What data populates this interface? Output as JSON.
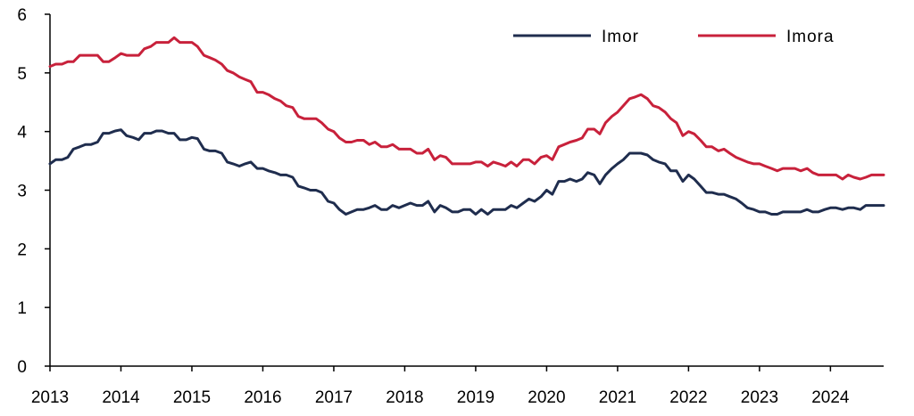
{
  "chart_data": {
    "type": "line",
    "title": "",
    "xlabel": "",
    "ylabel": "",
    "xlim": [
      2013,
      2024.75
    ],
    "ylim": [
      0,
      6
    ],
    "y_ticks": [
      0,
      1,
      2,
      3,
      4,
      5,
      6
    ],
    "x_ticks": [
      2013,
      2014,
      2015,
      2016,
      2017,
      2018,
      2019,
      2020,
      2021,
      2022,
      2023,
      2024
    ],
    "x_tick_labels": [
      "2013",
      "2014",
      "2015",
      "2016",
      "2017",
      "2018",
      "2019",
      "2020",
      "2021",
      "2022",
      "2023",
      "2024"
    ],
    "grid": false,
    "legend_position": "top-right",
    "series": [
      {
        "name": "Imor",
        "color": "#1f2d4e",
        "points": [
          [
            2013.0,
            3.45
          ],
          [
            2013.08,
            3.52
          ],
          [
            2013.17,
            3.52
          ],
          [
            2013.25,
            3.56
          ],
          [
            2013.33,
            3.7
          ],
          [
            2013.42,
            3.74
          ],
          [
            2013.5,
            3.78
          ],
          [
            2013.58,
            3.78
          ],
          [
            2013.67,
            3.82
          ],
          [
            2013.75,
            3.97
          ],
          [
            2013.83,
            3.97
          ],
          [
            2013.92,
            4.01
          ],
          [
            2014.0,
            4.03
          ],
          [
            2014.08,
            3.93
          ],
          [
            2014.17,
            3.9
          ],
          [
            2014.25,
            3.86
          ],
          [
            2014.33,
            3.97
          ],
          [
            2014.42,
            3.97
          ],
          [
            2014.5,
            4.01
          ],
          [
            2014.58,
            4.01
          ],
          [
            2014.67,
            3.97
          ],
          [
            2014.75,
            3.97
          ],
          [
            2014.83,
            3.86
          ],
          [
            2014.92,
            3.86
          ],
          [
            2015.0,
            3.9
          ],
          [
            2015.08,
            3.88
          ],
          [
            2015.17,
            3.7
          ],
          [
            2015.25,
            3.67
          ],
          [
            2015.33,
            3.67
          ],
          [
            2015.42,
            3.63
          ],
          [
            2015.5,
            3.48
          ],
          [
            2015.58,
            3.45
          ],
          [
            2015.67,
            3.41
          ],
          [
            2015.75,
            3.45
          ],
          [
            2015.83,
            3.48
          ],
          [
            2015.92,
            3.37
          ],
          [
            2016.0,
            3.37
          ],
          [
            2016.08,
            3.33
          ],
          [
            2016.17,
            3.3
          ],
          [
            2016.25,
            3.26
          ],
          [
            2016.33,
            3.26
          ],
          [
            2016.42,
            3.22
          ],
          [
            2016.5,
            3.07
          ],
          [
            2016.58,
            3.04
          ],
          [
            2016.67,
            3.0
          ],
          [
            2016.75,
            3.0
          ],
          [
            2016.83,
            2.96
          ],
          [
            2016.92,
            2.81
          ],
          [
            2017.0,
            2.78
          ],
          [
            2017.08,
            2.67
          ],
          [
            2017.17,
            2.59
          ],
          [
            2017.25,
            2.63
          ],
          [
            2017.33,
            2.67
          ],
          [
            2017.42,
            2.67
          ],
          [
            2017.5,
            2.7
          ],
          [
            2017.58,
            2.74
          ],
          [
            2017.67,
            2.67
          ],
          [
            2017.75,
            2.67
          ],
          [
            2017.83,
            2.74
          ],
          [
            2017.92,
            2.7
          ],
          [
            2018.0,
            2.74
          ],
          [
            2018.08,
            2.78
          ],
          [
            2018.17,
            2.74
          ],
          [
            2018.25,
            2.74
          ],
          [
            2018.33,
            2.81
          ],
          [
            2018.42,
            2.63
          ],
          [
            2018.5,
            2.74
          ],
          [
            2018.58,
            2.7
          ],
          [
            2018.67,
            2.63
          ],
          [
            2018.75,
            2.63
          ],
          [
            2018.83,
            2.67
          ],
          [
            2018.92,
            2.67
          ],
          [
            2019.0,
            2.59
          ],
          [
            2019.08,
            2.67
          ],
          [
            2019.17,
            2.59
          ],
          [
            2019.25,
            2.67
          ],
          [
            2019.33,
            2.67
          ],
          [
            2019.42,
            2.67
          ],
          [
            2019.5,
            2.74
          ],
          [
            2019.58,
            2.7
          ],
          [
            2019.67,
            2.78
          ],
          [
            2019.75,
            2.85
          ],
          [
            2019.83,
            2.81
          ],
          [
            2019.92,
            2.89
          ],
          [
            2020.0,
            3.0
          ],
          [
            2020.08,
            2.93
          ],
          [
            2020.17,
            3.15
          ],
          [
            2020.25,
            3.15
          ],
          [
            2020.33,
            3.19
          ],
          [
            2020.42,
            3.15
          ],
          [
            2020.5,
            3.19
          ],
          [
            2020.58,
            3.3
          ],
          [
            2020.67,
            3.26
          ],
          [
            2020.75,
            3.11
          ],
          [
            2020.83,
            3.26
          ],
          [
            2020.92,
            3.37
          ],
          [
            2021.0,
            3.45
          ],
          [
            2021.08,
            3.52
          ],
          [
            2021.17,
            3.63
          ],
          [
            2021.25,
            3.63
          ],
          [
            2021.33,
            3.63
          ],
          [
            2021.42,
            3.6
          ],
          [
            2021.5,
            3.52
          ],
          [
            2021.58,
            3.48
          ],
          [
            2021.67,
            3.45
          ],
          [
            2021.75,
            3.33
          ],
          [
            2021.83,
            3.33
          ],
          [
            2021.92,
            3.15
          ],
          [
            2022.0,
            3.26
          ],
          [
            2022.08,
            3.19
          ],
          [
            2022.17,
            3.07
          ],
          [
            2022.25,
            2.96
          ],
          [
            2022.33,
            2.96
          ],
          [
            2022.42,
            2.93
          ],
          [
            2022.5,
            2.93
          ],
          [
            2022.58,
            2.89
          ],
          [
            2022.67,
            2.85
          ],
          [
            2022.75,
            2.78
          ],
          [
            2022.83,
            2.7
          ],
          [
            2022.92,
            2.67
          ],
          [
            2023.0,
            2.63
          ],
          [
            2023.08,
            2.63
          ],
          [
            2023.17,
            2.59
          ],
          [
            2023.25,
            2.59
          ],
          [
            2023.33,
            2.63
          ],
          [
            2023.42,
            2.63
          ],
          [
            2023.5,
            2.63
          ],
          [
            2023.58,
            2.63
          ],
          [
            2023.67,
            2.67
          ],
          [
            2023.75,
            2.63
          ],
          [
            2023.83,
            2.63
          ],
          [
            2023.92,
            2.67
          ],
          [
            2024.0,
            2.7
          ],
          [
            2024.08,
            2.7
          ],
          [
            2024.17,
            2.67
          ],
          [
            2024.25,
            2.7
          ],
          [
            2024.33,
            2.7
          ],
          [
            2024.42,
            2.67
          ],
          [
            2024.5,
            2.74
          ],
          [
            2024.58,
            2.74
          ],
          [
            2024.67,
            2.74
          ],
          [
            2024.75,
            2.74
          ]
        ]
      },
      {
        "name": "Imora",
        "color": "#c8213b",
        "points": [
          [
            2013.0,
            5.11
          ],
          [
            2013.08,
            5.15
          ],
          [
            2013.17,
            5.15
          ],
          [
            2013.25,
            5.19
          ],
          [
            2013.33,
            5.19
          ],
          [
            2013.42,
            5.3
          ],
          [
            2013.5,
            5.3
          ],
          [
            2013.58,
            5.3
          ],
          [
            2013.67,
            5.3
          ],
          [
            2013.75,
            5.19
          ],
          [
            2013.83,
            5.19
          ],
          [
            2013.92,
            5.26
          ],
          [
            2014.0,
            5.33
          ],
          [
            2014.08,
            5.3
          ],
          [
            2014.17,
            5.3
          ],
          [
            2014.25,
            5.3
          ],
          [
            2014.33,
            5.41
          ],
          [
            2014.42,
            5.45
          ],
          [
            2014.5,
            5.52
          ],
          [
            2014.58,
            5.52
          ],
          [
            2014.67,
            5.52
          ],
          [
            2014.75,
            5.6
          ],
          [
            2014.83,
            5.52
          ],
          [
            2014.92,
            5.52
          ],
          [
            2015.0,
            5.52
          ],
          [
            2015.08,
            5.45
          ],
          [
            2015.17,
            5.3
          ],
          [
            2015.25,
            5.26
          ],
          [
            2015.33,
            5.22
          ],
          [
            2015.42,
            5.15
          ],
          [
            2015.5,
            5.04
          ],
          [
            2015.58,
            5.0
          ],
          [
            2015.67,
            4.93
          ],
          [
            2015.75,
            4.89
          ],
          [
            2015.83,
            4.85
          ],
          [
            2015.92,
            4.67
          ],
          [
            2016.0,
            4.67
          ],
          [
            2016.08,
            4.63
          ],
          [
            2016.17,
            4.56
          ],
          [
            2016.25,
            4.52
          ],
          [
            2016.33,
            4.44
          ],
          [
            2016.42,
            4.41
          ],
          [
            2016.5,
            4.26
          ],
          [
            2016.58,
            4.22
          ],
          [
            2016.67,
            4.22
          ],
          [
            2016.75,
            4.22
          ],
          [
            2016.83,
            4.15
          ],
          [
            2016.92,
            4.04
          ],
          [
            2017.0,
            4.0
          ],
          [
            2017.08,
            3.89
          ],
          [
            2017.17,
            3.82
          ],
          [
            2017.25,
            3.82
          ],
          [
            2017.33,
            3.85
          ],
          [
            2017.42,
            3.85
          ],
          [
            2017.5,
            3.78
          ],
          [
            2017.58,
            3.82
          ],
          [
            2017.67,
            3.74
          ],
          [
            2017.75,
            3.74
          ],
          [
            2017.83,
            3.78
          ],
          [
            2017.92,
            3.7
          ],
          [
            2018.0,
            3.7
          ],
          [
            2018.08,
            3.7
          ],
          [
            2018.17,
            3.63
          ],
          [
            2018.25,
            3.63
          ],
          [
            2018.33,
            3.7
          ],
          [
            2018.42,
            3.52
          ],
          [
            2018.5,
            3.59
          ],
          [
            2018.58,
            3.56
          ],
          [
            2018.67,
            3.45
          ],
          [
            2018.75,
            3.45
          ],
          [
            2018.83,
            3.45
          ],
          [
            2018.92,
            3.45
          ],
          [
            2019.0,
            3.48
          ],
          [
            2019.08,
            3.48
          ],
          [
            2019.17,
            3.41
          ],
          [
            2019.25,
            3.48
          ],
          [
            2019.33,
            3.45
          ],
          [
            2019.42,
            3.41
          ],
          [
            2019.5,
            3.48
          ],
          [
            2019.58,
            3.41
          ],
          [
            2019.67,
            3.52
          ],
          [
            2019.75,
            3.52
          ],
          [
            2019.83,
            3.45
          ],
          [
            2019.92,
            3.56
          ],
          [
            2020.0,
            3.59
          ],
          [
            2020.08,
            3.52
          ],
          [
            2020.17,
            3.74
          ],
          [
            2020.25,
            3.78
          ],
          [
            2020.33,
            3.82
          ],
          [
            2020.42,
            3.85
          ],
          [
            2020.5,
            3.89
          ],
          [
            2020.58,
            4.04
          ],
          [
            2020.67,
            4.04
          ],
          [
            2020.75,
            3.96
          ],
          [
            2020.83,
            4.15
          ],
          [
            2020.92,
            4.26
          ],
          [
            2021.0,
            4.33
          ],
          [
            2021.08,
            4.44
          ],
          [
            2021.17,
            4.56
          ],
          [
            2021.25,
            4.59
          ],
          [
            2021.33,
            4.63
          ],
          [
            2021.42,
            4.56
          ],
          [
            2021.5,
            4.44
          ],
          [
            2021.58,
            4.41
          ],
          [
            2021.67,
            4.33
          ],
          [
            2021.75,
            4.22
          ],
          [
            2021.83,
            4.15
          ],
          [
            2021.92,
            3.93
          ],
          [
            2022.0,
            4.0
          ],
          [
            2022.08,
            3.96
          ],
          [
            2022.17,
            3.85
          ],
          [
            2022.25,
            3.74
          ],
          [
            2022.33,
            3.74
          ],
          [
            2022.42,
            3.67
          ],
          [
            2022.5,
            3.7
          ],
          [
            2022.58,
            3.63
          ],
          [
            2022.67,
            3.56
          ],
          [
            2022.75,
            3.52
          ],
          [
            2022.83,
            3.48
          ],
          [
            2022.92,
            3.45
          ],
          [
            2023.0,
            3.45
          ],
          [
            2023.08,
            3.41
          ],
          [
            2023.17,
            3.37
          ],
          [
            2023.25,
            3.33
          ],
          [
            2023.33,
            3.37
          ],
          [
            2023.42,
            3.37
          ],
          [
            2023.5,
            3.37
          ],
          [
            2023.58,
            3.33
          ],
          [
            2023.67,
            3.37
          ],
          [
            2023.75,
            3.3
          ],
          [
            2023.83,
            3.26
          ],
          [
            2023.92,
            3.26
          ],
          [
            2024.0,
            3.26
          ],
          [
            2024.08,
            3.26
          ],
          [
            2024.17,
            3.19
          ],
          [
            2024.25,
            3.26
          ],
          [
            2024.33,
            3.22
          ],
          [
            2024.42,
            3.19
          ],
          [
            2024.5,
            3.22
          ],
          [
            2024.58,
            3.26
          ],
          [
            2024.67,
            3.26
          ],
          [
            2024.75,
            3.26
          ]
        ]
      }
    ]
  }
}
